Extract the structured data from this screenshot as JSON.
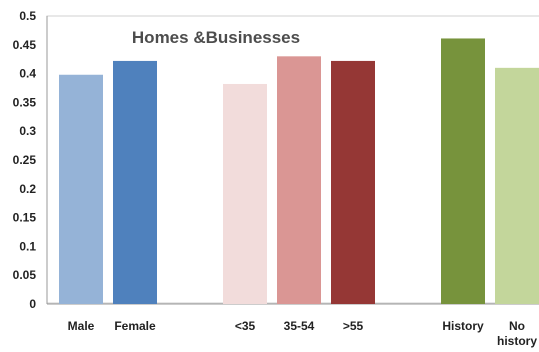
{
  "chart_data": {
    "type": "bar",
    "title": "Homes &Businesses",
    "xlabel": "",
    "ylabel": "",
    "ylim": [
      0,
      0.5
    ],
    "yticks": [
      "0",
      "0.05",
      "0.1",
      "0.15",
      "0.2",
      "0.25",
      "0.3",
      "0.35",
      "0.4",
      "0.45",
      "0.5"
    ],
    "grid": false,
    "groups": [
      {
        "bars": [
          {
            "label": "Male",
            "value": 0.398,
            "color": "#95b3d7"
          },
          {
            "label": "Female",
            "value": 0.422,
            "color": "#4f81bd"
          }
        ]
      },
      {
        "bars": [
          {
            "label": "<35",
            "value": 0.382,
            "color": "#f2dcdb"
          },
          {
            "label": "35-54",
            "value": 0.43,
            "color": "#da9694"
          },
          {
            "label": ">55",
            "value": 0.422,
            "color": "#953735"
          }
        ]
      },
      {
        "bars": [
          {
            "label": "History",
            "value": 0.461,
            "color": "#77933c"
          },
          {
            "label": "No history",
            "label_lines": [
              "No",
              "history"
            ],
            "value": 0.41,
            "color": "#c3d69b"
          }
        ]
      }
    ]
  }
}
